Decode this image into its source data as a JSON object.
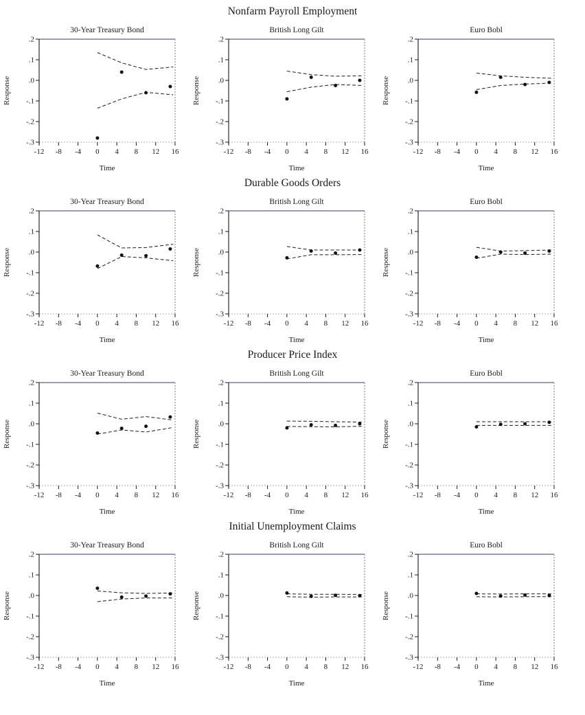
{
  "figure": {
    "xlabel": "Time",
    "ylabel": "Response",
    "xlim": [
      -12,
      16
    ],
    "ylim": [
      -0.3,
      0.2
    ],
    "xticks": [
      {
        "label": "-12",
        "value": -12
      },
      {
        "label": "-8",
        "value": -8
      },
      {
        "label": "-4",
        "value": -4
      },
      {
        "label": "0",
        "value": 0
      },
      {
        "label": "4",
        "value": 4
      },
      {
        "label": "8",
        "value": 8
      },
      {
        "label": "12",
        "value": 12
      },
      {
        "label": "16",
        "value": 16
      }
    ],
    "yticks": [
      {
        "label": ".2",
        "value": 0.2
      },
      {
        "label": ".1",
        "value": 0.1
      },
      {
        "label": ".0",
        "value": 0.0
      },
      {
        "label": "-.1",
        "value": -0.1
      },
      {
        "label": "-.2",
        "value": -0.2
      },
      {
        "label": "-.3",
        "value": -0.3
      }
    ],
    "grid": false,
    "legend": "none"
  },
  "colors": {
    "background": "#ffffff",
    "text": "#1a1a1a",
    "axis_left": "#2a2a2a",
    "frame_top": "#9a9eb3",
    "frame_right": "#aaa493",
    "frame_bottom": "#c6bfab",
    "tick": "#1a1a1a",
    "band_line": "#1a1a1a",
    "point_fill": "#111111"
  },
  "sections": [
    {
      "title": "Nonfarm Payroll Employment"
    },
    {
      "title": "Durable Goods Orders"
    },
    {
      "title": "Producer Price Index"
    },
    {
      "title": "Initial Unemployment Claims"
    }
  ],
  "chart_data": [
    {
      "type": "scatter",
      "section": "Nonfarm Payroll Employment",
      "title": "30-Year Treasury Bond",
      "xlabel": "Time",
      "ylabel": "Response",
      "xlim": [
        -12,
        16
      ],
      "ylim": [
        -0.3,
        0.2
      ],
      "points": {
        "x": [
          0,
          5,
          10,
          15
        ],
        "y": [
          -0.28,
          0.04,
          -0.06,
          -0.03
        ]
      },
      "band_x": [
        0,
        5,
        10,
        15.6
      ],
      "upper": [
        0.135,
        0.085,
        0.053,
        0.065
      ],
      "lower": [
        -0.135,
        -0.09,
        -0.058,
        -0.07
      ]
    },
    {
      "type": "scatter",
      "section": "Nonfarm Payroll Employment",
      "title": "British Long Gilt",
      "xlabel": "Time",
      "ylabel": "Response",
      "xlim": [
        -12,
        16
      ],
      "ylim": [
        -0.3,
        0.2
      ],
      "points": {
        "x": [
          0,
          5,
          10,
          15
        ],
        "y": [
          -0.09,
          0.015,
          -0.025,
          0.0
        ]
      },
      "band_x": [
        0,
        5,
        10,
        15.6
      ],
      "upper": [
        0.045,
        0.028,
        0.02,
        0.022
      ],
      "lower": [
        -0.055,
        -0.033,
        -0.02,
        -0.025
      ]
    },
    {
      "type": "scatter",
      "section": "Nonfarm Payroll Employment",
      "title": "Euro Bobl",
      "xlabel": "Time",
      "ylabel": "Response",
      "xlim": [
        -12,
        16
      ],
      "ylim": [
        -0.3,
        0.2
      ],
      "points": {
        "x": [
          0,
          5,
          10,
          15
        ],
        "y": [
          -0.058,
          0.015,
          -0.02,
          -0.01
        ]
      },
      "band_x": [
        0,
        5,
        10,
        15.6
      ],
      "upper": [
        0.035,
        0.022,
        0.015,
        0.01
      ],
      "lower": [
        -0.045,
        -0.025,
        -0.018,
        -0.013
      ]
    },
    {
      "type": "scatter",
      "section": "Durable Goods Orders",
      "title": "30-Year Treasury Bond",
      "xlabel": "Time",
      "ylabel": "Response",
      "xlim": [
        -12,
        16
      ],
      "ylim": [
        -0.3,
        0.2
      ],
      "points": {
        "x": [
          0,
          5,
          10,
          15
        ],
        "y": [
          -0.068,
          -0.015,
          -0.018,
          0.015
        ]
      },
      "band_x": [
        0,
        5,
        10,
        15.6
      ],
      "upper": [
        0.083,
        0.02,
        0.022,
        0.038
      ],
      "lower": [
        -0.08,
        -0.022,
        -0.028,
        -0.042
      ]
    },
    {
      "type": "scatter",
      "section": "Durable Goods Orders",
      "title": "British Long Gilt",
      "xlabel": "Time",
      "ylabel": "Response",
      "xlim": [
        -12,
        16
      ],
      "ylim": [
        -0.3,
        0.2
      ],
      "points": {
        "x": [
          0,
          5,
          10,
          15
        ],
        "y": [
          -0.028,
          0.005,
          -0.005,
          0.01
        ]
      },
      "band_x": [
        0,
        5,
        10,
        15.6
      ],
      "upper": [
        0.027,
        0.01,
        0.01,
        0.01
      ],
      "lower": [
        -0.033,
        -0.013,
        -0.013,
        -0.012
      ]
    },
    {
      "type": "scatter",
      "section": "Durable Goods Orders",
      "title": "Euro Bobl",
      "xlabel": "Time",
      "ylabel": "Response",
      "xlim": [
        -12,
        16
      ],
      "ylim": [
        -0.3,
        0.2
      ],
      "points": {
        "x": [
          0,
          5,
          10,
          15
        ],
        "y": [
          -0.025,
          0.0,
          -0.005,
          0.005
        ]
      },
      "band_x": [
        0,
        5,
        10,
        15.6
      ],
      "upper": [
        0.023,
        0.005,
        0.007,
        0.01
      ],
      "lower": [
        -0.03,
        -0.01,
        -0.012,
        -0.01
      ]
    },
    {
      "type": "scatter",
      "section": "Producer Price Index",
      "title": "30-Year Treasury Bond",
      "xlabel": "Time",
      "ylabel": "Response",
      "xlim": [
        -12,
        16
      ],
      "ylim": [
        -0.3,
        0.2
      ],
      "points": {
        "x": [
          0,
          5,
          10,
          15
        ],
        "y": [
          -0.045,
          -0.022,
          -0.012,
          0.033
        ]
      },
      "band_x": [
        0,
        5,
        10,
        15.6
      ],
      "upper": [
        0.052,
        0.022,
        0.035,
        0.018
      ],
      "lower": [
        -0.05,
        -0.03,
        -0.04,
        -0.018
      ]
    },
    {
      "type": "scatter",
      "section": "Producer Price Index",
      "title": "British Long Gilt",
      "xlabel": "Time",
      "ylabel": "Response",
      "xlim": [
        -12,
        16
      ],
      "ylim": [
        -0.3,
        0.2
      ],
      "points": {
        "x": [
          0,
          5,
          10,
          15
        ],
        "y": [
          -0.02,
          -0.005,
          -0.008,
          0.0
        ]
      },
      "band_x": [
        0,
        5,
        10,
        15.6
      ],
      "upper": [
        0.013,
        0.012,
        0.01,
        0.008
      ],
      "lower": [
        -0.013,
        -0.014,
        -0.015,
        -0.012
      ]
    },
    {
      "type": "scatter",
      "section": "Producer Price Index",
      "title": "Euro Bobl",
      "xlabel": "Time",
      "ylabel": "Response",
      "xlim": [
        -12,
        16
      ],
      "ylim": [
        -0.3,
        0.2
      ],
      "points": {
        "x": [
          0,
          5,
          10,
          15
        ],
        "y": [
          -0.015,
          -0.003,
          0.0,
          0.007
        ]
      },
      "band_x": [
        0,
        5,
        10,
        15.6
      ],
      "upper": [
        0.01,
        0.01,
        0.01,
        0.01
      ],
      "lower": [
        -0.008,
        -0.008,
        -0.008,
        -0.008
      ]
    },
    {
      "type": "scatter",
      "section": "Initial Unemployment Claims",
      "title": "30-Year Treasury Bond",
      "xlabel": "Time",
      "ylabel": "Response",
      "xlim": [
        -12,
        16
      ],
      "ylim": [
        -0.3,
        0.2
      ],
      "points": {
        "x": [
          0,
          5,
          10,
          15
        ],
        "y": [
          0.035,
          -0.008,
          -0.003,
          0.008
        ]
      },
      "band_x": [
        0,
        5,
        10,
        15.6
      ],
      "upper": [
        0.022,
        0.013,
        0.01,
        0.012
      ],
      "lower": [
        -0.03,
        -0.017,
        -0.012,
        -0.012
      ]
    },
    {
      "type": "scatter",
      "section": "Initial Unemployment Claims",
      "title": "British Long Gilt",
      "xlabel": "Time",
      "ylabel": "Response",
      "xlim": [
        -12,
        16
      ],
      "ylim": [
        -0.3,
        0.2
      ],
      "points": {
        "x": [
          0,
          5,
          10,
          15
        ],
        "y": [
          0.012,
          -0.004,
          0.001,
          -0.001
        ]
      },
      "band_x": [
        0,
        5,
        10,
        15.6
      ],
      "upper": [
        0.008,
        0.006,
        0.006,
        0.005
      ],
      "lower": [
        -0.006,
        -0.008,
        -0.007,
        -0.007
      ]
    },
    {
      "type": "scatter",
      "section": "Initial Unemployment Claims",
      "title": "Euro Bobl",
      "xlabel": "Time",
      "ylabel": "Response",
      "xlim": [
        -12,
        16
      ],
      "ylim": [
        -0.3,
        0.2
      ],
      "points": {
        "x": [
          0,
          5,
          10,
          15
        ],
        "y": [
          0.01,
          -0.003,
          0.002,
          0.0
        ]
      },
      "band_x": [
        0,
        5,
        10,
        15.6
      ],
      "upper": [
        0.008,
        0.007,
        0.008,
        0.008
      ],
      "lower": [
        -0.006,
        -0.007,
        -0.006,
        -0.006
      ]
    }
  ]
}
